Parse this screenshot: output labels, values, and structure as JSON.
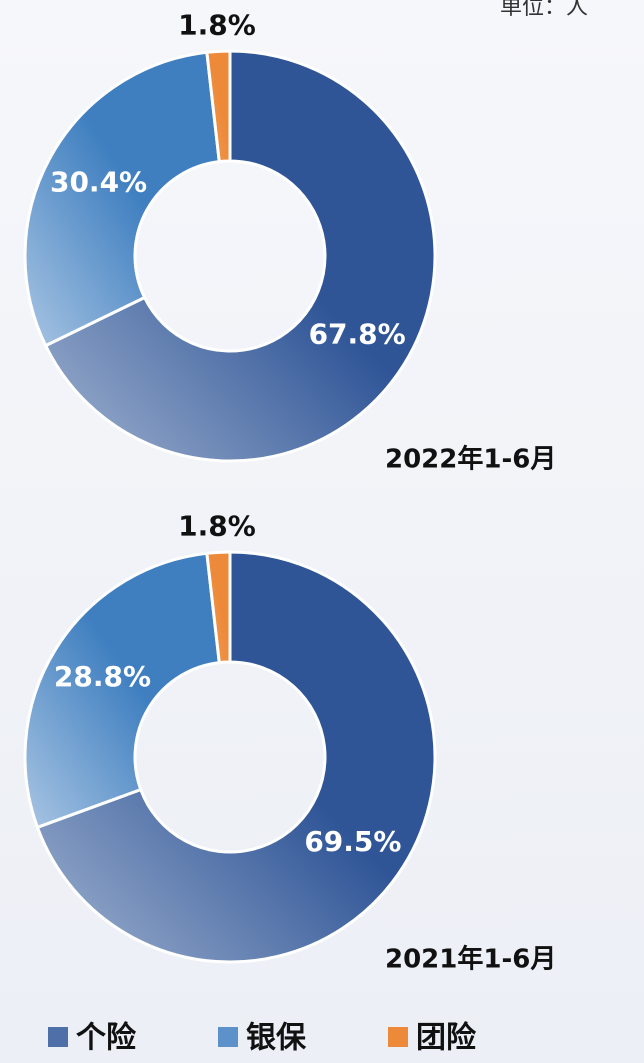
{
  "note": "单位：人",
  "chart_data": [
    {
      "type": "pie",
      "title": "2022年1-6月",
      "donut": true,
      "categories": [
        "个险",
        "银保",
        "团险"
      ],
      "values": [
        67.8,
        30.4,
        1.8
      ],
      "value_labels": [
        "67.8%",
        "30.4%",
        "1.8%"
      ],
      "colors": [
        "#2f5597",
        "#3f7fc0",
        "#ed8a3a"
      ]
    },
    {
      "type": "pie",
      "title": "2021年1-6月",
      "donut": true,
      "categories": [
        "个险",
        "银保",
        "团险"
      ],
      "values": [
        69.5,
        28.8,
        1.8
      ],
      "value_labels": [
        "69.5%",
        "28.8%",
        "1.8%"
      ],
      "colors": [
        "#2f5597",
        "#3f7fc0",
        "#ed8a3a"
      ]
    }
  ]
}
